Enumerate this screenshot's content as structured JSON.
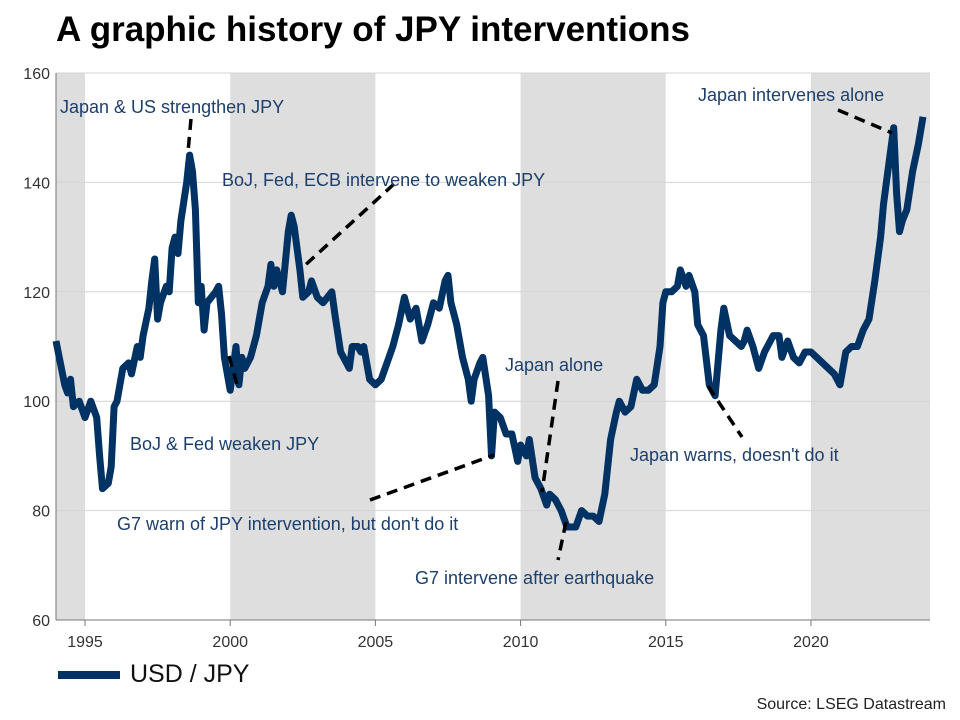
{
  "title": "A graphic history of JPY interventions",
  "source": "Source: LSEG Datastream",
  "chart_data": {
    "type": "line",
    "title": "A graphic history of JPY interventions",
    "xlim": [
      1994,
      2024.1
    ],
    "ylim": [
      60,
      160
    ],
    "x_ticks": [
      "1995",
      "2000",
      "2005",
      "2010",
      "2015",
      "2020"
    ],
    "y_ticks": [
      "60",
      "80",
      "100",
      "120",
      "140",
      "160"
    ],
    "grid": "horizontal",
    "legend_position": "bottom-left",
    "shaded_periods": [
      [
        1994,
        1995
      ],
      [
        2000,
        2005
      ],
      [
        2010,
        2015
      ],
      [
        2020,
        2024.1
      ]
    ],
    "colors": {
      "line": "#003263",
      "shade": "#dedede",
      "annotation": "#1d3f6b"
    },
    "series": [
      {
        "name": "USD / JPY",
        "points": [
          [
            1994.0,
            111
          ],
          [
            1994.3,
            103
          ],
          [
            1994.4,
            101.5
          ],
          [
            1994.5,
            104
          ],
          [
            1994.6,
            99
          ],
          [
            1994.8,
            100
          ],
          [
            1995.0,
            97
          ],
          [
            1995.2,
            100
          ],
          [
            1995.4,
            97
          ],
          [
            1995.5,
            90
          ],
          [
            1995.6,
            84
          ],
          [
            1995.8,
            85
          ],
          [
            1995.9,
            88
          ],
          [
            1996.0,
            99
          ],
          [
            1996.1,
            100
          ],
          [
            1996.3,
            106
          ],
          [
            1996.5,
            107
          ],
          [
            1996.6,
            105
          ],
          [
            1996.8,
            110
          ],
          [
            1996.9,
            108
          ],
          [
            1997.0,
            112
          ],
          [
            1997.2,
            117
          ],
          [
            1997.3,
            122
          ],
          [
            1997.4,
            126
          ],
          [
            1997.5,
            115
          ],
          [
            1997.6,
            118
          ],
          [
            1997.8,
            121
          ],
          [
            1997.9,
            120
          ],
          [
            1998.0,
            128
          ],
          [
            1998.1,
            130
          ],
          [
            1998.2,
            127
          ],
          [
            1998.3,
            133
          ],
          [
            1998.5,
            140
          ],
          [
            1998.6,
            145
          ],
          [
            1998.7,
            142
          ],
          [
            1998.8,
            135
          ],
          [
            1998.9,
            118
          ],
          [
            1999.0,
            121
          ],
          [
            1999.1,
            113
          ],
          [
            1999.2,
            118
          ],
          [
            1999.5,
            120
          ],
          [
            1999.6,
            121
          ],
          [
            1999.7,
            116
          ],
          [
            1999.8,
            108
          ],
          [
            2000.0,
            102
          ],
          [
            2000.1,
            106
          ],
          [
            2000.2,
            110
          ],
          [
            2000.3,
            103
          ],
          [
            2000.4,
            108
          ],
          [
            2000.5,
            106
          ],
          [
            2000.7,
            108
          ],
          [
            2000.9,
            112
          ],
          [
            2001.1,
            118
          ],
          [
            2001.3,
            121
          ],
          [
            2001.4,
            125
          ],
          [
            2001.5,
            121
          ],
          [
            2001.6,
            124
          ],
          [
            2001.8,
            120
          ],
          [
            2002.0,
            131
          ],
          [
            2002.1,
            134
          ],
          [
            2002.2,
            132
          ],
          [
            2002.4,
            124
          ],
          [
            2002.5,
            119
          ],
          [
            2002.7,
            120
          ],
          [
            2002.8,
            122
          ],
          [
            2003.0,
            119
          ],
          [
            2003.2,
            118
          ],
          [
            2003.5,
            120
          ],
          [
            2003.6,
            116
          ],
          [
            2003.8,
            109
          ],
          [
            2004.0,
            107
          ],
          [
            2004.1,
            106
          ],
          [
            2004.2,
            110
          ],
          [
            2004.4,
            110
          ],
          [
            2004.5,
            109
          ],
          [
            2004.6,
            110
          ],
          [
            2004.8,
            104
          ],
          [
            2005.0,
            103
          ],
          [
            2005.2,
            104
          ],
          [
            2005.4,
            107
          ],
          [
            2005.6,
            110
          ],
          [
            2005.8,
            114
          ],
          [
            2006.0,
            119
          ],
          [
            2006.2,
            115
          ],
          [
            2006.4,
            117
          ],
          [
            2006.6,
            111
          ],
          [
            2006.8,
            114
          ],
          [
            2007.0,
            118
          ],
          [
            2007.2,
            117
          ],
          [
            2007.4,
            122
          ],
          [
            2007.5,
            123
          ],
          [
            2007.6,
            118
          ],
          [
            2007.8,
            114
          ],
          [
            2008.0,
            108
          ],
          [
            2008.2,
            104
          ],
          [
            2008.3,
            100
          ],
          [
            2008.4,
            104
          ],
          [
            2008.6,
            107
          ],
          [
            2008.7,
            108
          ],
          [
            2008.9,
            101
          ],
          [
            2009.0,
            90
          ],
          [
            2009.1,
            98
          ],
          [
            2009.3,
            97
          ],
          [
            2009.5,
            94
          ],
          [
            2009.7,
            94
          ],
          [
            2009.9,
            89
          ],
          [
            2010.0,
            92
          ],
          [
            2010.2,
            90
          ],
          [
            2010.3,
            93
          ],
          [
            2010.5,
            86
          ],
          [
            2010.7,
            84
          ],
          [
            2010.9,
            81
          ],
          [
            2011.0,
            83
          ],
          [
            2011.2,
            82
          ],
          [
            2011.4,
            80
          ],
          [
            2011.6,
            77
          ],
          [
            2011.8,
            77
          ],
          [
            2011.9,
            77
          ],
          [
            2012.1,
            80
          ],
          [
            2012.3,
            79
          ],
          [
            2012.5,
            79
          ],
          [
            2012.7,
            78
          ],
          [
            2012.9,
            83
          ],
          [
            2013.1,
            93
          ],
          [
            2013.3,
            98
          ],
          [
            2013.4,
            100
          ],
          [
            2013.6,
            98
          ],
          [
            2013.8,
            99
          ],
          [
            2014.0,
            104
          ],
          [
            2014.2,
            102
          ],
          [
            2014.4,
            102
          ],
          [
            2014.6,
            103
          ],
          [
            2014.8,
            110
          ],
          [
            2014.9,
            118
          ],
          [
            2015.0,
            120
          ],
          [
            2015.2,
            120
          ],
          [
            2015.4,
            121
          ],
          [
            2015.5,
            124
          ],
          [
            2015.7,
            121
          ],
          [
            2015.8,
            123
          ],
          [
            2016.0,
            120
          ],
          [
            2016.1,
            114
          ],
          [
            2016.3,
            112
          ],
          [
            2016.5,
            103
          ],
          [
            2016.7,
            101
          ],
          [
            2016.9,
            113
          ],
          [
            2017.0,
            117
          ],
          [
            2017.2,
            112
          ],
          [
            2017.4,
            111
          ],
          [
            2017.6,
            110
          ],
          [
            2017.7,
            111
          ],
          [
            2017.8,
            113
          ],
          [
            2018.0,
            110
          ],
          [
            2018.2,
            106
          ],
          [
            2018.4,
            109
          ],
          [
            2018.6,
            111
          ],
          [
            2018.7,
            112
          ],
          [
            2018.9,
            112
          ],
          [
            2019.0,
            108
          ],
          [
            2019.2,
            111
          ],
          [
            2019.4,
            108
          ],
          [
            2019.6,
            107
          ],
          [
            2019.8,
            109
          ],
          [
            2020.0,
            109
          ],
          [
            2020.2,
            108
          ],
          [
            2020.4,
            107
          ],
          [
            2020.6,
            106
          ],
          [
            2020.8,
            105
          ],
          [
            2021.0,
            103
          ],
          [
            2021.2,
            109
          ],
          [
            2021.4,
            110
          ],
          [
            2021.6,
            110
          ],
          [
            2021.8,
            113
          ],
          [
            2022.0,
            115
          ],
          [
            2022.2,
            122
          ],
          [
            2022.4,
            130
          ],
          [
            2022.5,
            136
          ],
          [
            2022.7,
            144
          ],
          [
            2022.85,
            150
          ],
          [
            2022.95,
            138
          ],
          [
            2023.05,
            131
          ],
          [
            2023.15,
            133
          ],
          [
            2023.3,
            135
          ],
          [
            2023.5,
            142
          ],
          [
            2023.7,
            147
          ],
          [
            2023.86,
            152
          ]
        ]
      }
    ],
    "annotations": {
      "a1": "Japan & US strengthen JPY",
      "a2": "BoJ, Fed, ECB intervene to weaken JPY",
      "a3": "BoJ & Fed weaken JPY",
      "a4": "G7 warn of JPY intervention, but don't do it",
      "a5": "Japan alone",
      "a6": "G7 intervene after earthquake",
      "a7": "Japan warns, doesn't do it",
      "a8": "Japan intervenes alone"
    }
  }
}
